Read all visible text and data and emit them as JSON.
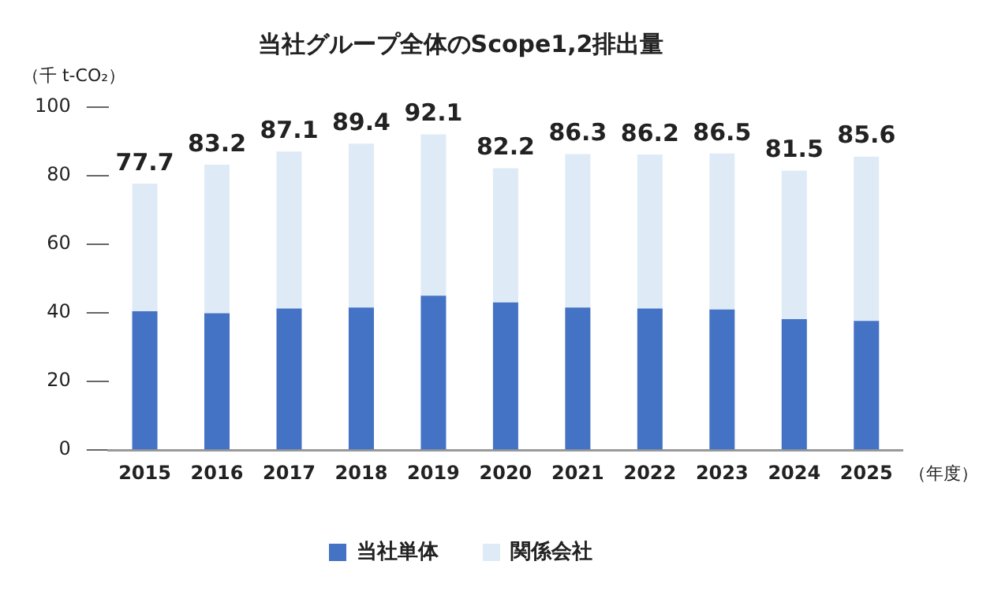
{
  "chart_data": {
    "type": "bar",
    "title": "当社グループ全体のScope1,2排出量",
    "ylabel": "（千 t-CO₂）",
    "xlabel": "（年度）",
    "categories": [
      "2015",
      "2016",
      "2017",
      "2018",
      "2019",
      "2020",
      "2021",
      "2022",
      "2023",
      "2024",
      "2025"
    ],
    "series": [
      {
        "name": "当社単体",
        "color": "#4472c4",
        "values": [
          40.5,
          39.9,
          41.3,
          41.6,
          45.0,
          43.1,
          41.6,
          41.3,
          41.0,
          38.2,
          37.7
        ]
      },
      {
        "name": "関係会社",
        "color": "#deebf7",
        "values": [
          37.2,
          43.3,
          45.8,
          47.8,
          47.1,
          39.1,
          44.7,
          44.9,
          45.5,
          43.3,
          47.9
        ]
      }
    ],
    "stacked": true,
    "totals": [
      "77.7",
      "83.2",
      "87.1",
      "89.4",
      "92.1",
      "82.2",
      "86.3",
      "86.2",
      "86.5",
      "81.5",
      "85.6"
    ],
    "ylim": [
      0,
      100
    ],
    "yticks": [
      0,
      20,
      40,
      60,
      80,
      100
    ],
    "grid": false,
    "legend": "bottom"
  }
}
